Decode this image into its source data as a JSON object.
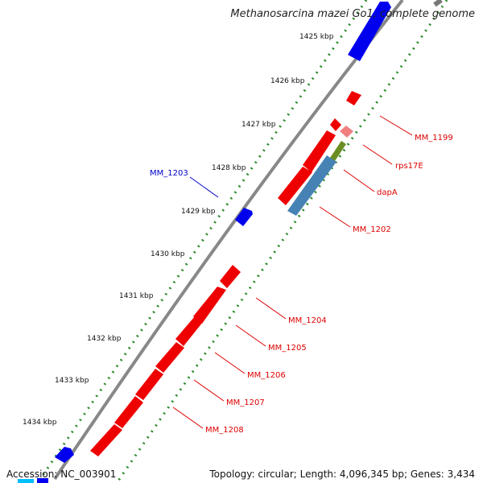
{
  "title": "Methanosarcina mazei Go1, complete genome",
  "footer": {
    "accession": "Accession: NC_003901",
    "summary": "Topology: circular; Length: 4,096,345 bp; Genes: 3,434"
  },
  "colors": {
    "backbone": "#808080",
    "gc_dots": "#2a8a2a",
    "forward_gene": "#0000ee",
    "reverse_gene": "#ee0000",
    "rrna": "#f08080",
    "trna_bar": "#6b8e23",
    "misc_bar": "#4682b4",
    "label_red": "#dd0000",
    "label_blue": "#0000cc"
  },
  "ticks": [
    {
      "label": "1425 kbp"
    },
    {
      "label": "1426 kbp"
    },
    {
      "label": "1427 kbp"
    },
    {
      "label": "1428 kbp"
    },
    {
      "label": "1429 kbp"
    },
    {
      "label": "1430 kbp"
    },
    {
      "label": "1431 kbp"
    },
    {
      "label": "1432 kbp"
    },
    {
      "label": "1433 kbp"
    },
    {
      "label": "1434 kbp"
    }
  ],
  "gene_labels": [
    {
      "name": "MM_1199",
      "color": "red"
    },
    {
      "name": "rps17E",
      "color": "red"
    },
    {
      "name": "dapA",
      "color": "red"
    },
    {
      "name": "MM_1202",
      "color": "red"
    },
    {
      "name": "MM_1203",
      "color": "blue"
    },
    {
      "name": "MM_1204",
      "color": "red"
    },
    {
      "name": "MM_1205",
      "color": "red"
    },
    {
      "name": "MM_1206",
      "color": "red"
    },
    {
      "name": "MM_1207",
      "color": "red"
    },
    {
      "name": "MM_1208",
      "color": "red"
    }
  ]
}
